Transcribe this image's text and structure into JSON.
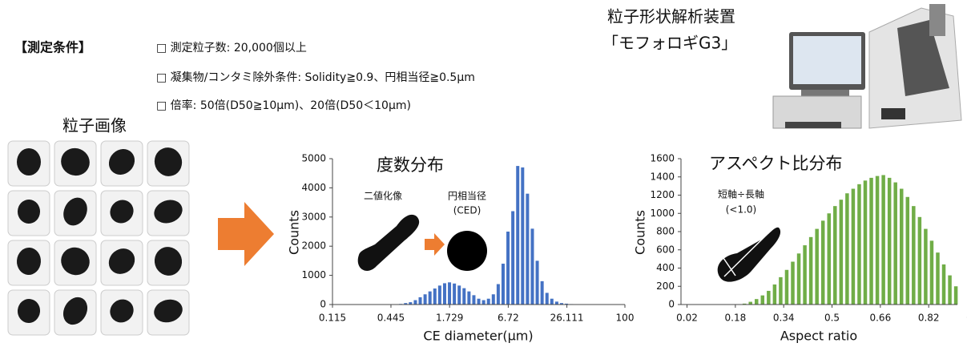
{
  "conditions": {
    "heading": "【測定条件】",
    "items": [
      "□ 測定粒子数: 20,000個以上",
      "□ 凝集物/コンタミ除外条件: Solidity≧0.9、円相当径≧0.5μm",
      "□ 倍率: 50倍(D50≧10μm)、20倍(D50＜10μm)"
    ]
  },
  "device": {
    "name": "粒子形状解析装置",
    "model": "「モフォロギG3」"
  },
  "particle_images_label": "粒子画像",
  "chart_data": [
    {
      "type": "bar",
      "title": "度数分布",
      "x_label": "CE diameter(μm)",
      "y_label": "Counts",
      "annotations": [
        "二値化像",
        "円相当径",
        "(CED)"
      ],
      "color": "#4472c4",
      "x_log": true,
      "x": [
        0.558,
        0.625,
        0.699,
        0.783,
        0.876,
        0.981,
        1.098,
        1.229,
        1.376,
        1.541,
        1.725,
        1.931,
        2.161,
        2.419,
        2.708,
        3.032,
        3.394,
        3.799,
        4.253,
        4.761,
        5.329,
        5.966,
        6.679,
        7.476,
        8.37,
        9.369,
        10.49,
        11.74,
        13.14,
        14.71,
        16.47,
        18.43,
        20.64,
        23.1,
        25.86,
        28.95,
        32.41
      ],
      "values": [
        20,
        50,
        80,
        150,
        250,
        350,
        450,
        550,
        650,
        730,
        760,
        720,
        650,
        560,
        450,
        320,
        200,
        150,
        200,
        350,
        700,
        1400,
        2500,
        3200,
        4750,
        4700,
        3800,
        2600,
        1500,
        800,
        400,
        200,
        100,
        50,
        30,
        15,
        5
      ],
      "xlim": [
        0.115,
        100
      ],
      "xticks": [
        0.115,
        0.445,
        1.729,
        6.72,
        26.111,
        100
      ],
      "ylim": [
        0,
        5000
      ],
      "yticks": [
        0,
        1000,
        2000,
        3000,
        4000,
        5000
      ]
    },
    {
      "type": "bar",
      "title": "アスペクト比分布",
      "x_label": "Aspect ratio",
      "y_label": "Counts",
      "annotations": [
        "短軸÷長軸",
        "(<1.0)"
      ],
      "color": "#70ad47",
      "x_log": false,
      "x": [
        0.21,
        0.23,
        0.25,
        0.27,
        0.29,
        0.31,
        0.33,
        0.35,
        0.37,
        0.39,
        0.41,
        0.43,
        0.45,
        0.47,
        0.49,
        0.51,
        0.53,
        0.55,
        0.57,
        0.59,
        0.61,
        0.63,
        0.65,
        0.67,
        0.69,
        0.71,
        0.73,
        0.75,
        0.77,
        0.79,
        0.81,
        0.83,
        0.85,
        0.87,
        0.89,
        0.91
      ],
      "values": [
        10,
        30,
        60,
        100,
        150,
        220,
        300,
        380,
        470,
        560,
        650,
        740,
        830,
        920,
        1000,
        1080,
        1150,
        1220,
        1270,
        1320,
        1360,
        1390,
        1410,
        1420,
        1390,
        1340,
        1270,
        1180,
        1080,
        960,
        830,
        700,
        570,
        440,
        320,
        200
      ],
      "xlim": [
        0,
        0.915
      ],
      "xticks": [
        0.02,
        0.18,
        0.34,
        0.5,
        0.66,
        0.82,
        0.98
      ],
      "ylim": [
        0,
        1600
      ],
      "yticks": [
        0,
        200,
        400,
        600,
        800,
        1000,
        1200,
        1400,
        1600
      ]
    }
  ]
}
